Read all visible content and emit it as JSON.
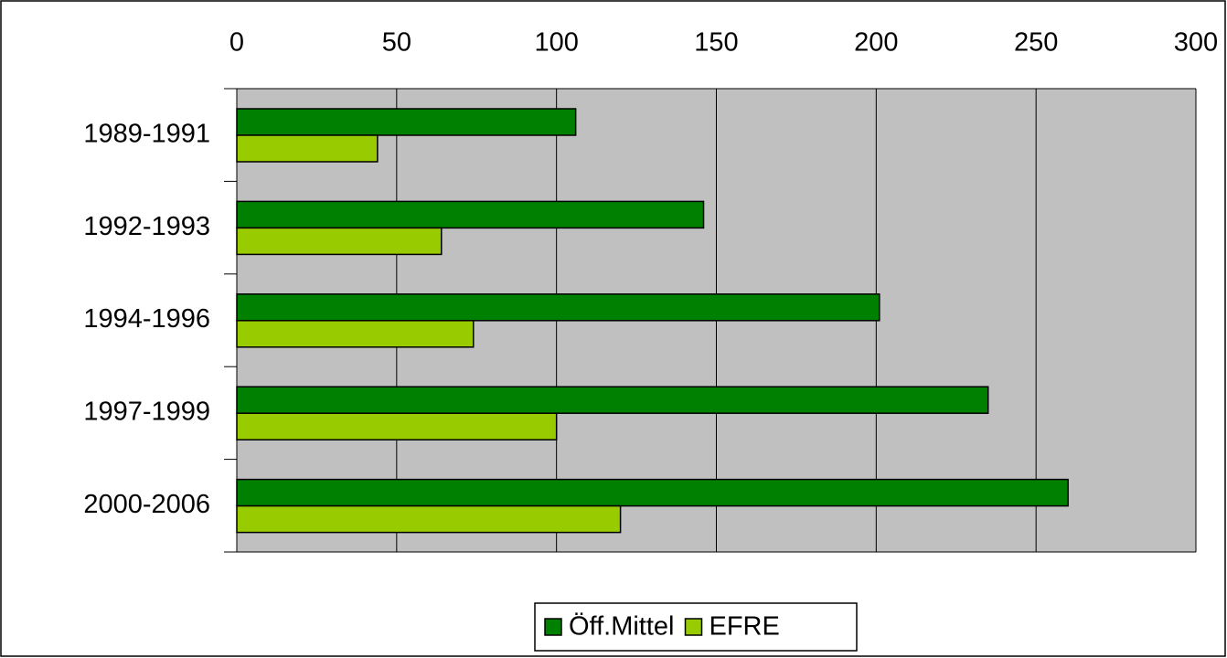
{
  "chart_data": {
    "type": "hbar",
    "categories": [
      "1989-1991",
      "1992-1993",
      "1994-1996",
      "1997-1999",
      "2000-2006"
    ],
    "series": [
      {
        "name": "Öff.Mittel",
        "color": "#008000",
        "values": [
          106,
          146,
          201,
          235,
          260
        ]
      },
      {
        "name": "EFRE",
        "color": "#99cc00",
        "values": [
          44,
          64,
          74,
          100,
          120
        ]
      }
    ],
    "xlim": [
      0,
      300
    ],
    "xticks": [
      0,
      50,
      100,
      150,
      200,
      250,
      300
    ],
    "grid": true,
    "plot_background": "#c0c0c0",
    "legend": "bottom"
  }
}
